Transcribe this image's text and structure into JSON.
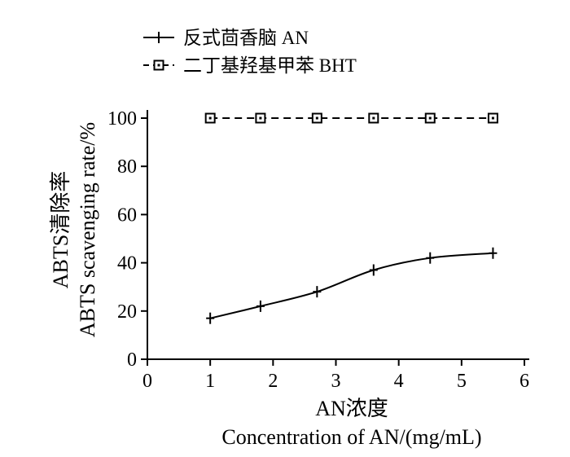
{
  "chart_data": {
    "type": "line",
    "title": "",
    "xlabel": "AN浓度",
    "xlabel_en": "Concentration of AN/(mg/mL)",
    "ylabel": "ABTS清除率",
    "ylabel_en": "ABTS scavenging rate/%",
    "xlim": [
      0,
      6
    ],
    "ylim": [
      0,
      100
    ],
    "x_ticks": [
      "0",
      "1",
      "2",
      "3",
      "4",
      "5",
      "6"
    ],
    "y_ticks": [
      "0",
      "20",
      "40",
      "60",
      "80",
      "100"
    ],
    "x": [
      1,
      1.8,
      2.7,
      3.6,
      4.5,
      5.5
    ],
    "grid": false,
    "legend_position": "top-left",
    "series": [
      {
        "name": "反式茴香脑 AN",
        "marker": "plus",
        "line_style": "solid",
        "values": [
          17,
          22,
          28,
          37,
          42,
          44
        ]
      },
      {
        "name": "二丁基羟基甲苯 BHT",
        "marker": "square",
        "line_style": "dashed",
        "values": [
          100,
          100,
          100,
          100,
          100,
          100
        ]
      }
    ]
  }
}
